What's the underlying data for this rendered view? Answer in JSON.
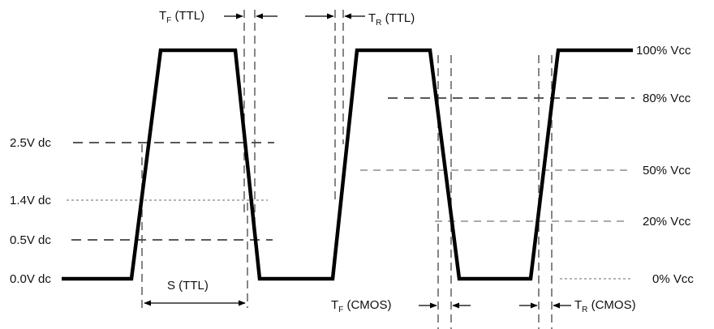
{
  "left_levels": {
    "v25": "2.5V dc",
    "v14": "1.4V dc",
    "v05": "0.5V dc",
    "v00": "0.0V dc"
  },
  "right_levels": {
    "p100": "100% Vcc",
    "p80": "80% Vcc",
    "p50": "50% Vcc",
    "p20": "20% Vcc",
    "p0": "0% Vcc"
  },
  "timing_labels": {
    "tf_ttl": {
      "main": "T",
      "sub": "F",
      "rest": " (TTL)"
    },
    "tr_ttl": {
      "main": "T",
      "sub": "R",
      "rest": " (TTL)"
    },
    "s_ttl": "S (TTL)",
    "tf_cmos": {
      "main": "T",
      "sub": "F",
      "rest": " (CMOS)"
    },
    "tr_cmos": {
      "main": "T",
      "sub": "R",
      "rest": " (CMOS)"
    }
  }
}
